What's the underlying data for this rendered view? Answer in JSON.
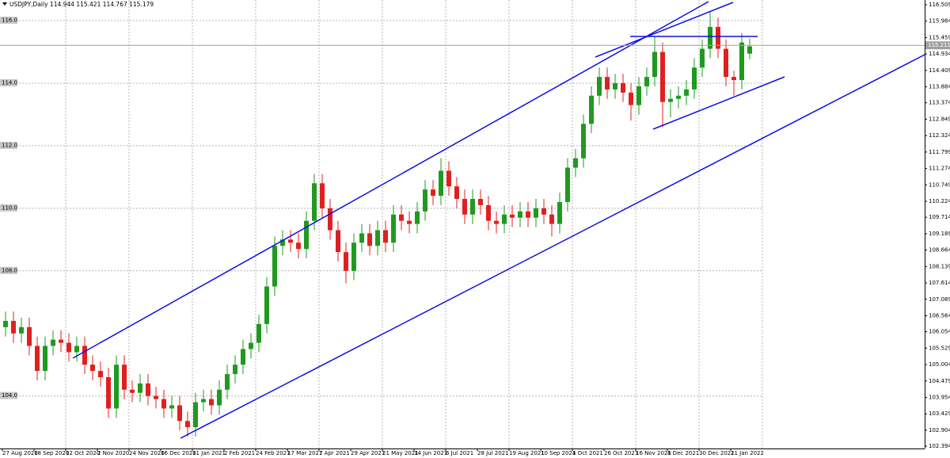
{
  "chart_data": {
    "type": "candlestick",
    "title": "USDJPY,Daily  114.944 115.421 114.767 115.179",
    "categories": [
      "27 Aug 2020",
      null,
      null,
      null,
      "18 Sep 2020",
      null,
      null,
      null,
      "12 Oct 2020",
      null,
      null,
      null,
      "2 Nov 2020",
      null,
      null,
      null,
      "24 Nov 2020",
      null,
      null,
      null,
      "16 Dec 2020",
      null,
      null,
      null,
      "11 Jan 2021",
      null,
      null,
      null,
      "2 Feb 2021",
      null,
      null,
      null,
      "24 Feb 2021",
      null,
      null,
      null,
      "17 Mar 2021",
      null,
      null,
      null,
      "7 Apr 2021",
      null,
      null,
      null,
      "29 Apr 2021",
      null,
      null,
      null,
      "21 May 2021",
      null,
      null,
      null,
      "14 Jun 2021",
      null,
      null,
      null,
      "6 Jul 2021",
      null,
      null,
      null,
      "28 Jul 2021",
      null,
      null,
      null,
      "19 Aug 2021",
      null,
      null,
      null,
      "10 Sep 2021",
      null,
      null,
      null,
      "4 Oct 2021",
      null,
      null,
      null,
      "26 Oct 2021",
      null,
      null,
      null,
      "16 Nov 2021",
      null,
      null,
      null,
      "8 Dec 2021",
      null,
      null,
      null,
      "30 Dec 2021",
      null,
      null,
      null,
      "21 Jan 2022",
      null,
      null
    ],
    "open": [
      106.2,
      106.4,
      106.0,
      106.2,
      105.6,
      104.8,
      105.6,
      105.8,
      105.7,
      105.4,
      105.6,
      105.0,
      104.8,
      104.6,
      103.6,
      105.0,
      104.2,
      104.1,
      104.4,
      104.0,
      103.9,
      103.6,
      103.7,
      103.2,
      103.0,
      103.8,
      103.9,
      103.7,
      104.2,
      104.7,
      105.0,
      105.5,
      105.7,
      106.3,
      107.5,
      108.8,
      109.0,
      108.9,
      108.7,
      109.6,
      110.8,
      110.0,
      109.3,
      108.6,
      108.0,
      108.9,
      109.2,
      108.8,
      109.3,
      108.9,
      109.8,
      109.6,
      109.5,
      109.9,
      110.6,
      110.4,
      111.2,
      110.7,
      110.3,
      109.8,
      110.3,
      110.1,
      109.6,
      109.5,
      109.8,
      109.7,
      109.9,
      109.7,
      110.0,
      109.8,
      109.5,
      110.2,
      111.3,
      111.6,
      112.7,
      113.6,
      114.2,
      113.8,
      114.0,
      113.7,
      113.3,
      113.9,
      114.2,
      115.0,
      113.4,
      113.5,
      113.6,
      113.8,
      114.5,
      115.1,
      115.8,
      115.1,
      114.2,
      114.1,
      114.944
    ],
    "high": [
      106.7,
      106.7,
      106.5,
      106.5,
      105.9,
      105.9,
      106.1,
      106.1,
      106.0,
      105.9,
      105.9,
      105.3,
      105.1,
      104.9,
      105.3,
      105.3,
      104.5,
      104.7,
      104.7,
      104.3,
      104.2,
      104.0,
      104.0,
      103.5,
      104.1,
      104.2,
      104.2,
      104.5,
      105.0,
      105.3,
      105.8,
      106.0,
      106.6,
      107.8,
      109.1,
      109.3,
      109.3,
      109.2,
      109.9,
      111.1,
      111.1,
      110.3,
      109.6,
      108.9,
      109.2,
      109.5,
      109.5,
      109.6,
      109.6,
      110.1,
      110.1,
      109.9,
      110.2,
      110.9,
      110.9,
      111.6,
      111.5,
      111.0,
      110.6,
      110.6,
      110.6,
      110.4,
      109.9,
      110.1,
      110.1,
      110.2,
      110.2,
      110.3,
      110.3,
      110.1,
      110.5,
      111.6,
      111.9,
      113.0,
      113.9,
      114.5,
      114.5,
      114.3,
      114.3,
      114.0,
      114.2,
      114.5,
      115.5,
      115.3,
      113.8,
      113.9,
      114.1,
      114.8,
      115.4,
      116.3,
      116.1,
      115.4,
      114.4,
      115.6,
      115.421
    ],
    "low": [
      105.9,
      105.7,
      105.7,
      105.3,
      104.5,
      104.5,
      105.3,
      105.4,
      105.1,
      105.1,
      104.7,
      104.5,
      104.3,
      103.3,
      103.3,
      103.9,
      103.8,
      103.8,
      103.7,
      103.6,
      103.3,
      103.3,
      102.9,
      102.7,
      102.7,
      103.5,
      103.4,
      103.4,
      103.9,
      104.4,
      104.7,
      105.2,
      105.4,
      106.0,
      107.2,
      108.5,
      108.6,
      108.4,
      108.4,
      109.3,
      109.7,
      109.0,
      108.3,
      107.6,
      107.7,
      108.6,
      108.5,
      108.5,
      108.6,
      108.6,
      109.3,
      109.2,
      109.2,
      109.6,
      110.1,
      110.1,
      110.4,
      110.0,
      109.5,
      109.5,
      109.8,
      109.3,
      109.2,
      109.2,
      109.4,
      109.4,
      109.4,
      109.4,
      109.5,
      109.1,
      109.2,
      109.9,
      111.0,
      111.3,
      112.4,
      113.3,
      113.5,
      113.5,
      113.4,
      112.8,
      113.0,
      113.6,
      113.9,
      112.6,
      112.9,
      113.2,
      113.3,
      113.5,
      114.2,
      114.8,
      114.8,
      113.9,
      113.6,
      113.8,
      114.767
    ],
    "close": [
      106.4,
      106.0,
      106.2,
      105.6,
      104.8,
      105.6,
      105.8,
      105.7,
      105.4,
      105.6,
      105.0,
      104.8,
      104.6,
      103.6,
      105.0,
      104.2,
      104.1,
      104.4,
      104.0,
      103.9,
      103.6,
      103.7,
      103.2,
      103.0,
      103.8,
      103.9,
      103.7,
      104.2,
      104.7,
      105.0,
      105.5,
      105.7,
      106.3,
      107.5,
      108.8,
      109.0,
      108.9,
      108.7,
      109.6,
      110.8,
      110.0,
      109.3,
      108.6,
      108.0,
      108.9,
      109.2,
      108.8,
      109.3,
      108.9,
      109.8,
      109.6,
      109.5,
      109.9,
      110.6,
      110.4,
      111.2,
      110.7,
      110.3,
      109.8,
      110.3,
      110.1,
      109.6,
      109.5,
      109.8,
      109.7,
      109.9,
      109.7,
      110.0,
      109.8,
      109.5,
      110.2,
      111.3,
      111.6,
      112.7,
      113.6,
      114.2,
      113.8,
      114.0,
      113.7,
      113.3,
      113.9,
      114.2,
      115.0,
      113.4,
      113.5,
      113.6,
      113.8,
      114.5,
      115.1,
      115.8,
      115.1,
      114.2,
      114.1,
      115.3,
      115.179
    ],
    "up_color": "#1f9a1f",
    "down_color": "#e02020",
    "ylim": [
      102.32,
      116.66
    ],
    "yticks": [
      {
        "value": 116,
        "label": "116.0"
      },
      {
        "value": 114,
        "label": "114.0"
      },
      {
        "value": 112,
        "label": "112.0"
      },
      {
        "value": 110,
        "label": "110.0"
      },
      {
        "value": 108,
        "label": "108.0"
      },
      {
        "value": 104,
        "label": "104.0"
      }
    ],
    "y2ticks": [
      116.509,
      115.984,
      115.459,
      114.934,
      114.409,
      113.884,
      113.374,
      112.849,
      112.324,
      111.799,
      111.274,
      110.749,
      110.224,
      109.714,
      109.189,
      108.664,
      108.139,
      107.614,
      107.089,
      106.564,
      106.054,
      105.529,
      105.004,
      104.479,
      103.954,
      103.429,
      102.904,
      102.394
    ],
    "current_price": 115.211,
    "grid": true
  }
}
